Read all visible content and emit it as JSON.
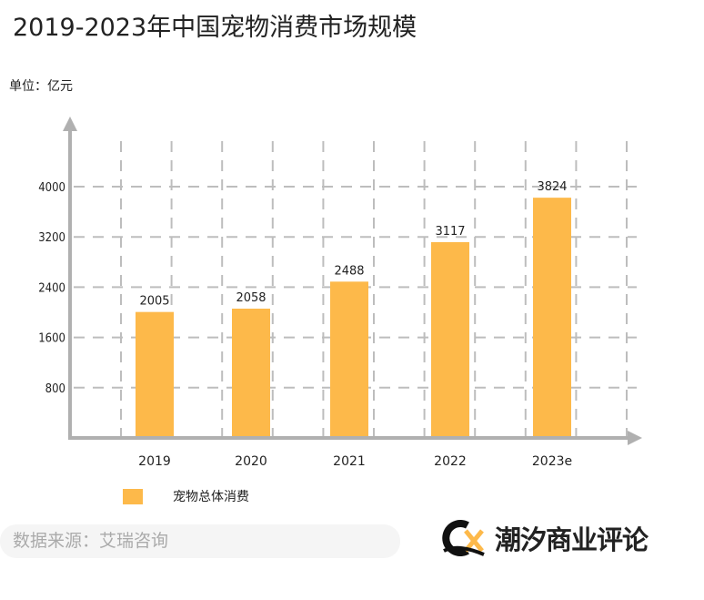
{
  "title": "2019-2023年中国宠物消费市场规模",
  "unit": "单位：亿元",
  "source": "数据来源：艾瑞咨询",
  "logo": {
    "text": "潮汐商业评论",
    "letters": "CX"
  },
  "colors": {
    "bar": "#fdb94a",
    "grid": "#bdbdbd",
    "axis": "#b0b0b0"
  },
  "chart_data": {
    "type": "bar",
    "categories": [
      "2019",
      "2020",
      "2021",
      "2022",
      "2023e"
    ],
    "series": [
      {
        "name": "宠物总体消费",
        "values": [
          2005,
          2058,
          2488,
          3117,
          3824
        ]
      }
    ],
    "yticks": [
      800,
      1600,
      2400,
      3200,
      4000
    ],
    "ylim": [
      0,
      4000
    ],
    "grid": true,
    "legend": "bottom-left"
  }
}
